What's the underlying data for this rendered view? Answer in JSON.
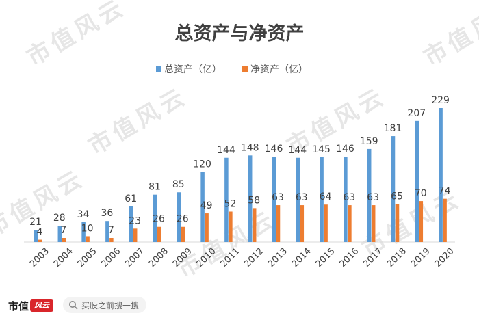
{
  "chart_data": {
    "type": "bar",
    "title": "总资产与净资产",
    "categories": [
      "2003",
      "2004",
      "2005",
      "2006",
      "2007",
      "2008",
      "2009",
      "2010",
      "2011",
      "2012",
      "2013",
      "2014",
      "2015",
      "2016",
      "2017",
      "2018",
      "2019",
      "2020"
    ],
    "series": [
      {
        "name": "总资产（亿）",
        "color": "#5b9bd5",
        "values": [
          21,
          28,
          34,
          36,
          61,
          81,
          85,
          120,
          144,
          148,
          146,
          144,
          145,
          146,
          159,
          181,
          207,
          229
        ]
      },
      {
        "name": "净资产（亿）",
        "color": "#ed7d31",
        "values": [
          4,
          7,
          10,
          7,
          23,
          26,
          26,
          49,
          52,
          58,
          63,
          63,
          64,
          63,
          63,
          65,
          70,
          74
        ]
      }
    ],
    "ylim": [
      0,
      229
    ],
    "legend_position": "top-center",
    "grid": false
  },
  "watermark": {
    "text": "市值风云"
  },
  "footer": {
    "brand": "市值",
    "brand_logo": "风云",
    "search_placeholder": "买股之前搜一搜",
    "search_icon": "search-icon"
  }
}
